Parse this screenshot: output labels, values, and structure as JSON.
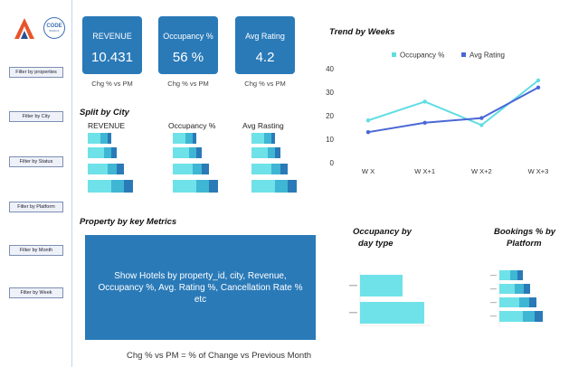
{
  "sidebar": {
    "filters": [
      "Filter by properties",
      "Filter by City",
      "Filter by Status",
      "Filter by Platform",
      "Filter by Month",
      "Filter by Week"
    ],
    "logo_text_1": "CODE",
    "logo_text_2": "BASICS"
  },
  "kpis": [
    {
      "label": "REVENUE",
      "value": "10.431",
      "sub": "Chg % vs PM"
    },
    {
      "label": "Occupancy %",
      "value": "56 %",
      "sub": "Chg % vs PM"
    },
    {
      "label": "Avg Rating",
      "value": "4.2",
      "sub": "Chg % vs PM"
    }
  ],
  "split": {
    "title": "Split by City",
    "columns": [
      "REVENUE",
      "Occupancy %",
      "Avg Rasting"
    ]
  },
  "property_metrics": {
    "title": "Property by key Metrics",
    "description": "Show Hotels by property_id, city, Revenue, Occupancy %, Avg. Rating %, Cancellation Rate % etc"
  },
  "occupancy_day": {
    "title_line1": "Occupancy by",
    "title_line2": "day type"
  },
  "bookings_platform": {
    "title_line1": "Bookings % by",
    "title_line2": "Platform"
  },
  "footer": "Chg % vs PM = % of Change vs Previous Month",
  "colors": {
    "accent": "#2a7ab8",
    "occupancy": "#5fdde2",
    "rating": "#4a67d6",
    "bar_light": "#6ee2e8",
    "bar_mid": "#3fb6d3",
    "bar_dark": "#2a7ab8"
  },
  "chart_data": {
    "type": "line",
    "title": "Trend by Weeks",
    "categories": [
      "W X",
      "W X+1",
      "W X+2",
      "W X+3"
    ],
    "series": [
      {
        "name": "Occupancy %",
        "values": [
          18,
          26,
          16,
          35
        ]
      },
      {
        "name": "Avg Rating",
        "values": [
          13,
          17,
          19,
          32
        ]
      }
    ],
    "yticks": [
      0,
      10,
      20,
      30,
      40
    ],
    "ylim": [
      0,
      40
    ],
    "legend": "top"
  }
}
